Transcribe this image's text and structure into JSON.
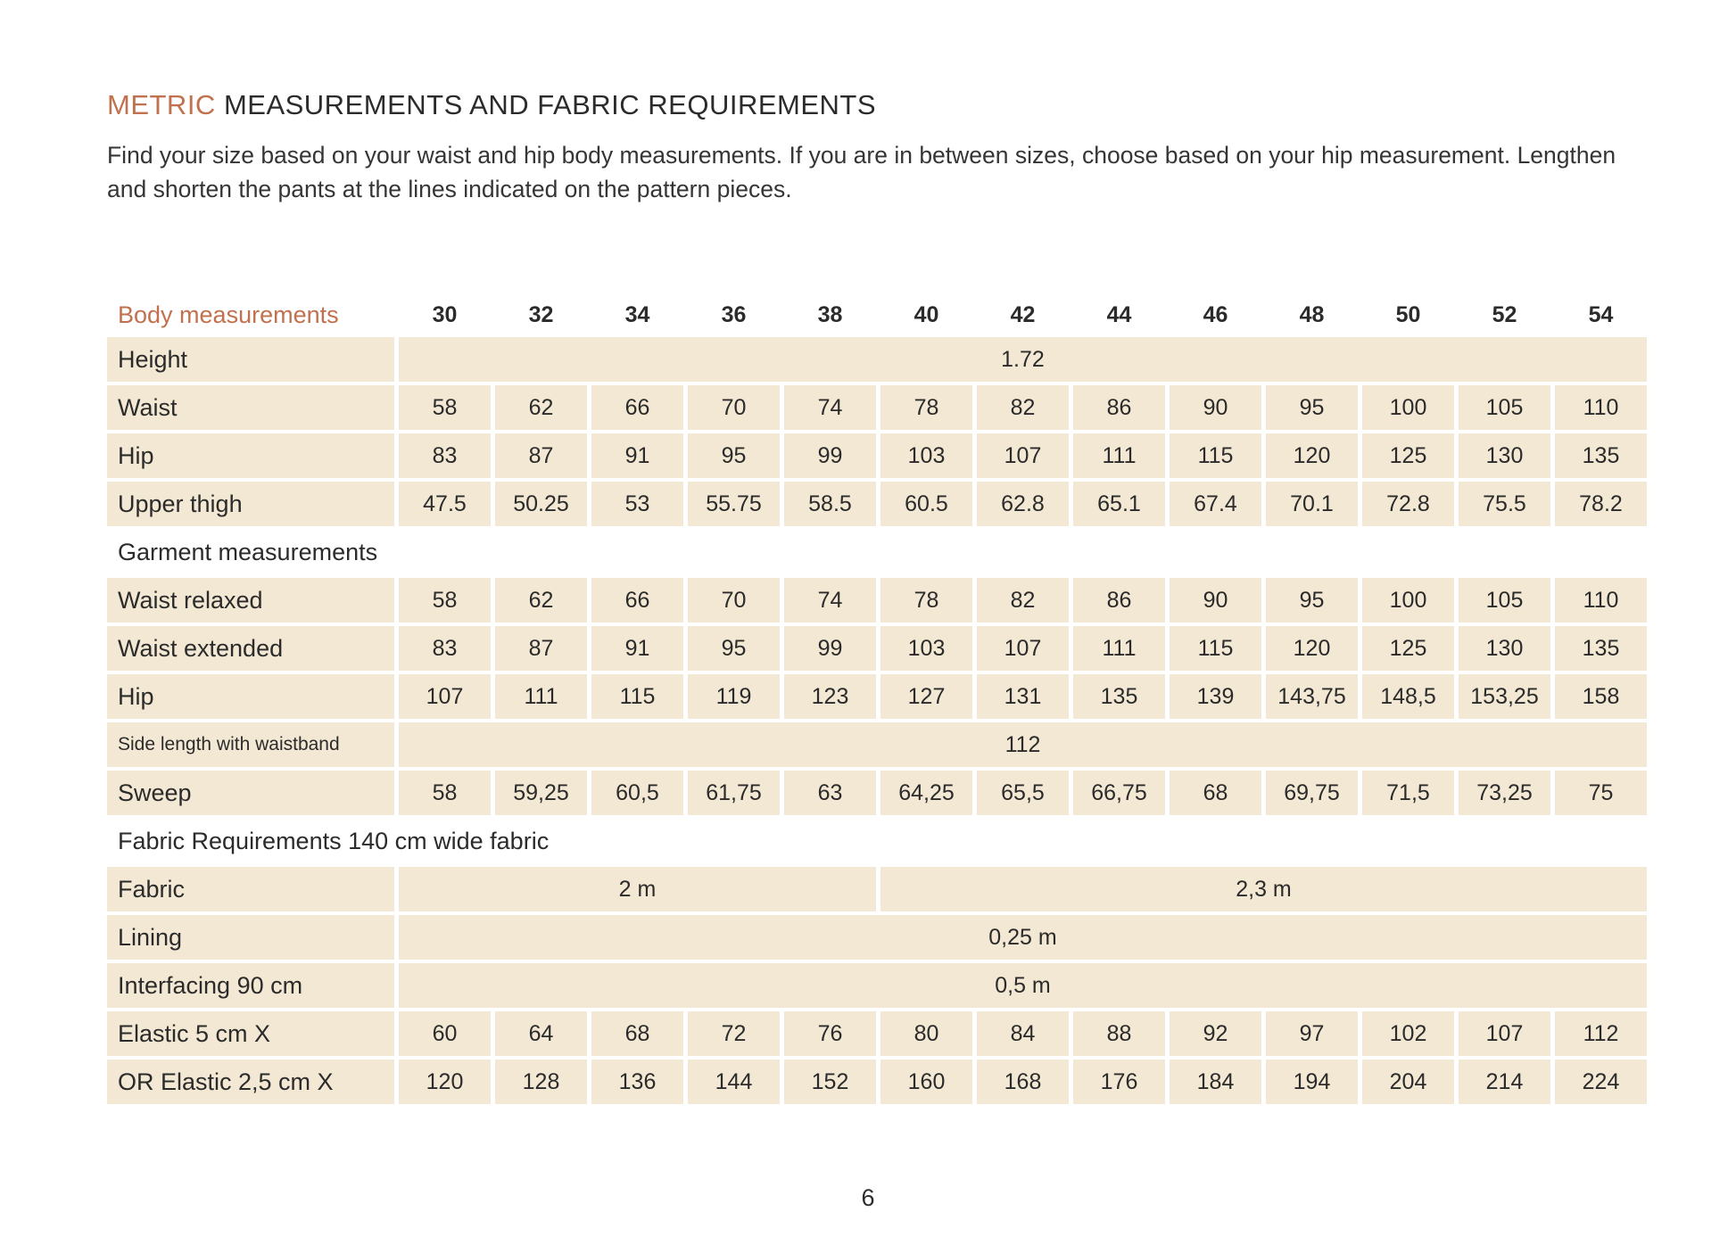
{
  "colors": {
    "accent": "#c1714d",
    "cell_background": "#f3e8d3",
    "text": "#2b2b2b"
  },
  "header": {
    "title_accent": "METRIC",
    "title_rest": " MEASUREMENTS AND FABRIC REQUIREMENTS",
    "intro": "Find your size based on your waist and hip body measurements. If you are in between sizes, choose based on your hip measurement. Lengthen and shorten the pants at the lines indicated on the pattern pieces."
  },
  "table": {
    "corner_label": "Body measurements",
    "sizes": [
      "30",
      "32",
      "34",
      "36",
      "38",
      "40",
      "42",
      "44",
      "46",
      "48",
      "50",
      "52",
      "54"
    ],
    "rows": [
      {
        "type": "span",
        "label": "Height",
        "value": "1.72"
      },
      {
        "type": "values",
        "label": "Waist",
        "values": [
          "58",
          "62",
          "66",
          "70",
          "74",
          "78",
          "82",
          "86",
          "90",
          "95",
          "100",
          "105",
          "110"
        ]
      },
      {
        "type": "values",
        "label": "Hip",
        "values": [
          "83",
          "87",
          "91",
          "95",
          "99",
          "103",
          "107",
          "111",
          "115",
          "120",
          "125",
          "130",
          "135"
        ]
      },
      {
        "type": "values",
        "label": "Upper thigh",
        "values": [
          "47.5",
          "50.25",
          "53",
          "55.75",
          "58.5",
          "60.5",
          "62.8",
          "65.1",
          "67.4",
          "70.1",
          "72.8",
          "75.5",
          "78.2"
        ]
      },
      {
        "type": "section",
        "label": "Garment measurements"
      },
      {
        "type": "values",
        "label": "Waist relaxed",
        "values": [
          "58",
          "62",
          "66",
          "70",
          "74",
          "78",
          "82",
          "86",
          "90",
          "95",
          "100",
          "105",
          "110"
        ]
      },
      {
        "type": "values",
        "label": "Waist extended",
        "values": [
          "83",
          "87",
          "91",
          "95",
          "99",
          "103",
          "107",
          "111",
          "115",
          "120",
          "125",
          "130",
          "135"
        ]
      },
      {
        "type": "values",
        "label": "Hip",
        "values": [
          "107",
          "111",
          "115",
          "119",
          "123",
          "127",
          "131",
          "135",
          "139",
          "143,75",
          "148,5",
          "153,25",
          "158"
        ]
      },
      {
        "type": "span",
        "label": "Side length with waistband",
        "small_label": true,
        "value": "112"
      },
      {
        "type": "values",
        "label": "Sweep",
        "values": [
          "58",
          "59,25",
          "60,5",
          "61,75",
          "63",
          "64,25",
          "65,5",
          "66,75",
          "68",
          "69,75",
          "71,5",
          "73,25",
          "75"
        ]
      },
      {
        "type": "section",
        "label": "Fabric Requirements 140 cm wide fabric"
      },
      {
        "type": "multispan",
        "label": "Fabric",
        "spans": [
          {
            "value": "2 m",
            "cols": 5
          },
          {
            "value": "2,3 m",
            "cols": 8
          }
        ]
      },
      {
        "type": "span",
        "label": "Lining",
        "value": "0,25 m"
      },
      {
        "type": "span",
        "label": "Interfacing 90 cm",
        "value": "0,5 m"
      },
      {
        "type": "values",
        "label": "Elastic 5 cm X",
        "values": [
          "60",
          "64",
          "68",
          "72",
          "76",
          "80",
          "84",
          "88",
          "92",
          "97",
          "102",
          "107",
          "112"
        ]
      },
      {
        "type": "values",
        "label": "OR Elastic 2,5 cm X",
        "values": [
          "120",
          "128",
          "136",
          "144",
          "152",
          "160",
          "168",
          "176",
          "184",
          "194",
          "204",
          "214",
          "224"
        ]
      }
    ]
  },
  "footer": {
    "page_number": "6"
  }
}
